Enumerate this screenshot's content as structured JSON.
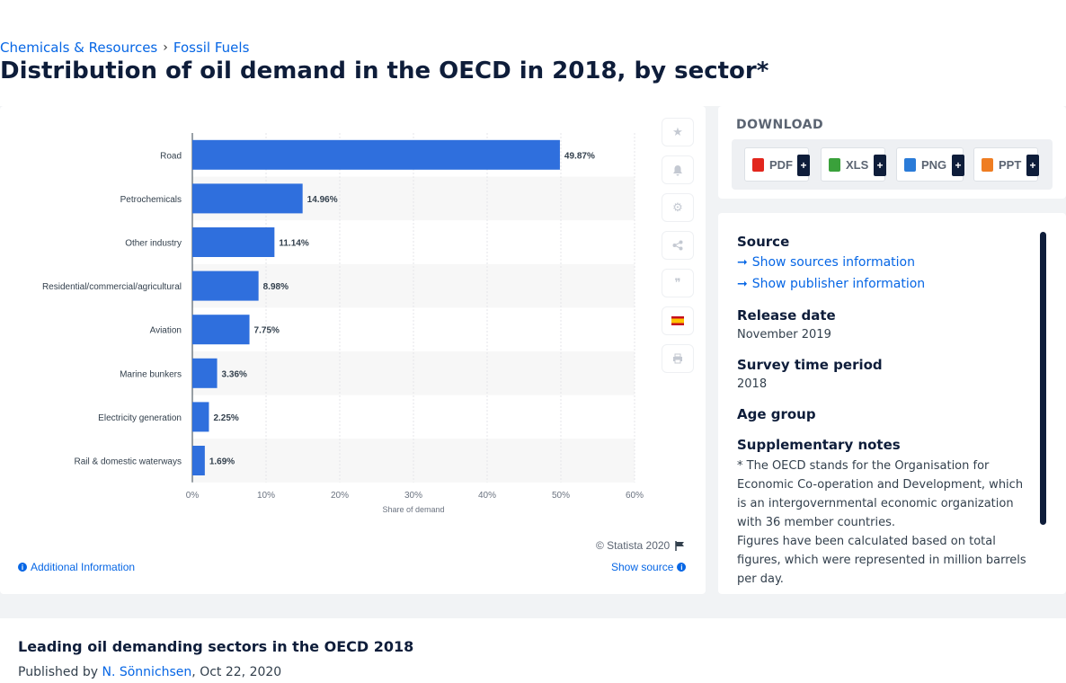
{
  "breadcrumb": {
    "items": [
      "Chemicals & Resources",
      "Fossil Fuels"
    ],
    "separator": "›"
  },
  "page_title": "Distribution of oil demand in the OECD in 2018, by sector*",
  "toolbar": {
    "icons": [
      "star-icon",
      "bell-icon",
      "gear-icon",
      "share-icon",
      "quote-icon",
      "spain-flag-icon",
      "print-icon"
    ]
  },
  "chart_footer": {
    "copyright": "© Statista 2020",
    "additional_info": "Additional Information",
    "show_source": "Show source"
  },
  "download": {
    "title": "DOWNLOAD",
    "buttons": [
      {
        "label": "PDF",
        "icon_color": "#e2261d"
      },
      {
        "label": "XLS",
        "icon_color": "#3aa13b"
      },
      {
        "label": "PNG",
        "icon_color": "#2a7bd8"
      },
      {
        "label": "PPT",
        "icon_color": "#ef7d22"
      }
    ],
    "plus": "+"
  },
  "source": {
    "heading": "Source",
    "link_sources": "Show sources information",
    "link_publisher": "Show publisher information",
    "release_heading": "Release date",
    "release_value": "November 2019",
    "survey_heading": "Survey time period",
    "survey_value": "2018",
    "age_heading": "Age group",
    "notes_heading": "Supplementary notes",
    "notes_p1": "* The OECD stands for the Organisation for Economic Co-operation and Development, which is an intergovernmental economic organization with 36 member countries.",
    "notes_p2": "Figures have been calculated based on total figures, which were represented in million barrels per day."
  },
  "related": {
    "title": "Leading oil demanding sectors in the OECD 2018",
    "published_prefix": "Published by ",
    "author": "N. Sönnichsen",
    "date": ", Oct 22, 2020"
  },
  "colors": {
    "bar": "#2f6fdd",
    "accent": "#0666e5",
    "navy": "#0e1d3a"
  },
  "chart_data": {
    "type": "bar",
    "orientation": "horizontal",
    "categories": [
      "Road",
      "Petrochemicals",
      "Other industry",
      "Residential/commercial/agricultural",
      "Aviation",
      "Marine bunkers",
      "Electricity generation",
      "Rail & domestic waterways"
    ],
    "values": [
      49.87,
      14.96,
      11.14,
      8.98,
      7.75,
      3.36,
      2.25,
      1.69
    ],
    "data_labels": [
      "49.87%",
      "14.96%",
      "11.14%",
      "8.98%",
      "7.75%",
      "3.36%",
      "2.25%",
      "1.69%"
    ],
    "xlabel": "Share of demand",
    "xlim": [
      0,
      60
    ],
    "xticks": [
      "0%",
      "10%",
      "20%",
      "30%",
      "40%",
      "50%",
      "60%"
    ],
    "grid": true,
    "legend": "none"
  }
}
